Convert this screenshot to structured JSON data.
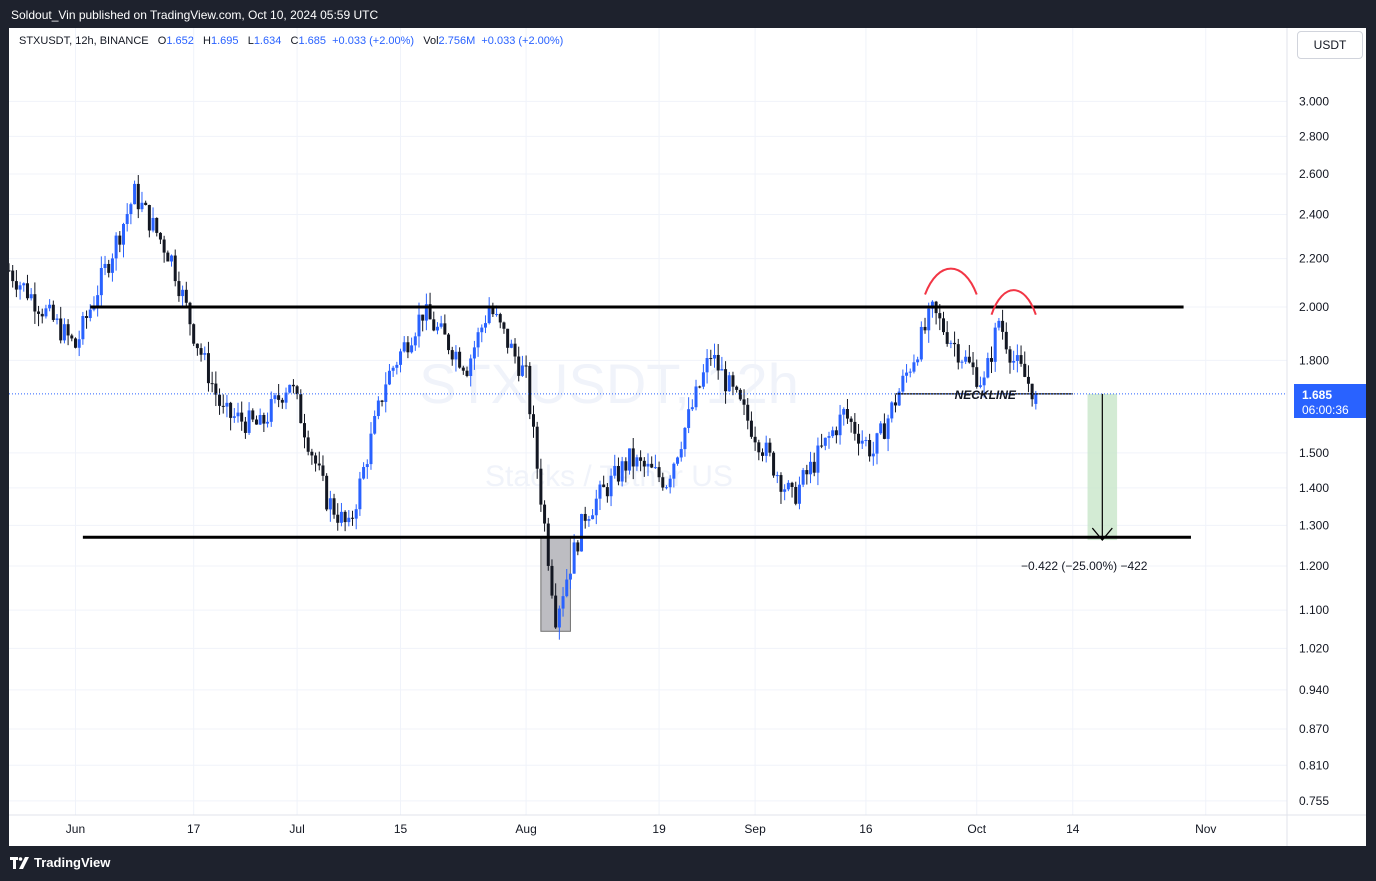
{
  "header": {
    "publisher_line": "Soldout_Vin published on TradingView.com, Oct 10, 2024 05:59 UTC"
  },
  "legend": {
    "symbol": "STXUSDT, 12h, BINANCE",
    "o_label": "O",
    "o_value": "1.652",
    "h_label": "H",
    "h_value": "1.695",
    "l_label": "L",
    "l_value": "1.634",
    "c_label": "C",
    "c_value": "1.685",
    "change": "+0.033 (+2.00%)",
    "vol_label": "Vol",
    "vol_value": "2.756M",
    "vol_change": "+0.033 (+2.00%)"
  },
  "currency_button": "USDT",
  "watermark": {
    "symbol": "STXUSDT, 12h",
    "name": "Stacks / Tether US"
  },
  "price_label": {
    "price": "1.685",
    "countdown": "06:00:36"
  },
  "annotations": {
    "neckline": "NECKLINE",
    "measure": "−0.422 (−25.00%) −422"
  },
  "footer": {
    "brand": "TradingView"
  },
  "colors": {
    "up": "#2962ff",
    "down": "#131722",
    "price_bg": "#2962ff",
    "measure_fill": "#c8e6c9",
    "head_shoulders": "#f23645",
    "zone_fill": "#bdbdc2"
  },
  "chart_data": {
    "type": "candlestick",
    "y_scale": "log",
    "y_ticks": [
      "3.000",
      "2.800",
      "2.600",
      "2.400",
      "2.200",
      "2.000",
      "1.800",
      "1.500",
      "1.400",
      "1.300",
      "1.200",
      "1.100",
      "1.020",
      "0.940",
      "0.870",
      "0.810",
      "0.755"
    ],
    "x_ticks": [
      "Jun",
      "17",
      "Jul",
      "15",
      "Aug",
      "19",
      "Sep",
      "16",
      "Oct",
      "14",
      "Nov"
    ],
    "x_start": "2024-05-23",
    "x_end": "2024-11-12",
    "last_candle": {
      "date": "2024-10-09",
      "open": 1.652,
      "high": 1.695,
      "low": 1.634,
      "close": 1.685
    },
    "levels": [
      {
        "name": "resistance",
        "price": 2.0,
        "from": "2024-06-03",
        "to": "2024-10-29"
      },
      {
        "name": "support",
        "price": 1.27,
        "from": "2024-06-02",
        "to": "2024-10-30"
      },
      {
        "name": "neckline",
        "price": 1.685,
        "from": "2024-09-20",
        "to": "2024-10-14"
      }
    ],
    "swing_points": [
      {
        "date": "2024-05-23",
        "price": 2.15
      },
      {
        "date": "2024-06-01",
        "price": 1.85
      },
      {
        "date": "2024-06-09",
        "price": 2.5
      },
      {
        "date": "2024-06-14",
        "price": 2.2
      },
      {
        "date": "2024-06-17",
        "price": 1.9
      },
      {
        "date": "2024-06-21",
        "price": 1.62
      },
      {
        "date": "2024-06-26",
        "price": 1.58
      },
      {
        "date": "2024-06-30",
        "price": 1.73
      },
      {
        "date": "2024-07-05",
        "price": 1.37
      },
      {
        "date": "2024-07-08",
        "price": 1.29
      },
      {
        "date": "2024-07-13",
        "price": 1.73
      },
      {
        "date": "2024-07-18",
        "price": 1.98
      },
      {
        "date": "2024-07-24",
        "price": 1.78
      },
      {
        "date": "2024-07-27",
        "price": 2.0
      },
      {
        "date": "2024-08-01",
        "price": 1.74
      },
      {
        "date": "2024-08-05",
        "price": 1.09
      },
      {
        "date": "2024-08-09",
        "price": 1.33
      },
      {
        "date": "2024-08-15",
        "price": 1.48
      },
      {
        "date": "2024-08-20",
        "price": 1.42
      },
      {
        "date": "2024-08-26",
        "price": 1.82
      },
      {
        "date": "2024-09-01",
        "price": 1.56
      },
      {
        "date": "2024-09-06",
        "price": 1.37
      },
      {
        "date": "2024-09-13",
        "price": 1.62
      },
      {
        "date": "2024-09-17",
        "price": 1.5
      },
      {
        "date": "2024-09-25",
        "price": 1.98
      },
      {
        "date": "2024-09-30",
        "price": 1.78
      },
      {
        "date": "2024-10-02",
        "price": 1.72
      },
      {
        "date": "2024-10-04",
        "price": 1.95
      },
      {
        "date": "2024-10-06",
        "price": 1.8
      },
      {
        "date": "2024-10-09",
        "price": 1.685
      }
    ],
    "measure": {
      "from_price": 1.685,
      "to_price": 1.263,
      "change": -0.422,
      "change_pct": -25.0
    },
    "grid": true
  }
}
